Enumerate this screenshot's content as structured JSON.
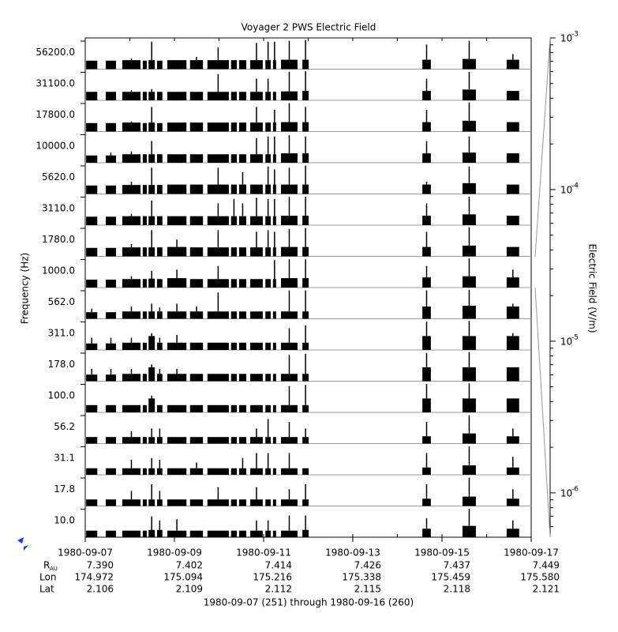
{
  "chart_data": {
    "type": "strip-stack",
    "title": "Voyager 2 PWS Electric Field",
    "y_label": "Frequency (Hz)",
    "y2_label": "Electric Field (V/m)",
    "footer": "1980-09-07 (251) through 1980-09-16 (260)",
    "color": "#000000",
    "log_scale": true,
    "xlim": [
      251,
      261
    ],
    "xticks": [
      {
        "value": 251,
        "label": "1980-09-07"
      },
      {
        "value": 253,
        "label": "1980-09-09"
      },
      {
        "value": 255,
        "label": "1980-09-11"
      },
      {
        "value": 257,
        "label": "1980-09-13"
      },
      {
        "value": 259,
        "label": "1980-09-15"
      },
      {
        "value": 261,
        "label": "1980-09-17"
      }
    ],
    "ylim": [
      5.1e-07,
      0.001
    ],
    "yticks": [
      {
        "value": 0.001,
        "label": "10",
        "exponent": "-3"
      },
      {
        "value": 0.0001,
        "label": "10",
        "exponent": "-4"
      },
      {
        "value": 1e-05,
        "label": "10",
        "exponent": "-5"
      },
      {
        "value": 1e-06,
        "label": "10",
        "exponent": "-6"
      }
    ],
    "segments": [
      [
        251.02,
        251.27
      ],
      [
        251.46,
        251.69
      ],
      [
        251.83,
        252.24
      ],
      [
        252.29,
        252.38
      ],
      [
        252.42,
        252.56
      ],
      [
        252.61,
        252.73
      ],
      [
        252.84,
        253.27
      ],
      [
        253.35,
        253.64
      ],
      [
        253.74,
        254.22
      ],
      [
        254.27,
        254.4
      ],
      [
        254.45,
        254.61
      ],
      [
        254.7,
        254.98
      ],
      [
        255.04,
        255.16
      ],
      [
        255.21,
        255.28
      ],
      [
        255.39,
        255.76
      ],
      [
        255.87,
        256.01
      ],
      [
        258.56,
        258.75
      ],
      [
        259.46,
        259.76
      ],
      [
        260.45,
        260.73
      ]
    ],
    "channels": [
      {
        "name": "56200.0",
        "values": [
          4e-06,
          4e-06,
          4.5e-06,
          4e-06,
          4.5e-06,
          4e-06,
          4.5e-06,
          4.5e-06,
          4.5e-06,
          4.5e-06,
          4.5e-06,
          4.5e-06,
          4.5e-06,
          4.5e-06,
          5e-06,
          5e-06,
          5e-06,
          6e-06,
          5e-06
        ],
        "peaks": [
          null,
          null,
          7e-06,
          null,
          0.0004,
          null,
          null,
          1e-05,
          0.0001,
          null,
          null,
          0.0003,
          0.0004,
          0.0004,
          0.0005,
          0.0006,
          0.0002,
          0.0005,
          2e-05
        ]
      },
      {
        "name": "31100.0",
        "values": [
          4e-06,
          4e-06,
          4e-06,
          4e-06,
          4e-06,
          4e-06,
          4e-06,
          4e-06,
          4e-06,
          4e-06,
          4e-06,
          4e-06,
          4e-06,
          4e-06,
          4.5e-06,
          5e-06,
          5e-06,
          7e-06,
          5e-06
        ],
        "peaks": [
          null,
          null,
          6e-06,
          null,
          8e-06,
          null,
          null,
          null,
          0.0003,
          null,
          null,
          0.0001,
          0.0001,
          null,
          0.0005,
          0.0006,
          0.0001,
          0.0005,
          null
        ]
      },
      {
        "name": "17800.0",
        "values": [
          4e-06,
          4e-06,
          4.5e-06,
          4e-06,
          4.5e-06,
          4e-06,
          4.5e-06,
          4.5e-06,
          4.5e-06,
          4.5e-06,
          4.5e-06,
          4.5e-06,
          4.5e-06,
          4.5e-06,
          5e-06,
          5e-06,
          5e-06,
          7e-06,
          5e-06
        ],
        "peaks": [
          null,
          null,
          6e-06,
          null,
          0.0002,
          null,
          null,
          null,
          null,
          null,
          null,
          0.0002,
          null,
          0.0001,
          0.0005,
          0.0002,
          0.0001,
          0.0006,
          null
        ]
      },
      {
        "name": "10000.0",
        "values": [
          3e-06,
          3e-06,
          4e-06,
          4e-06,
          4e-06,
          4e-06,
          4e-06,
          4e-06,
          4e-06,
          4e-06,
          4e-06,
          4e-06,
          4e-06,
          4e-06,
          5e-06,
          5e-06,
          5e-06,
          6e-06,
          5e-06
        ],
        "peaks": [
          null,
          6e-06,
          8e-06,
          null,
          0.0001,
          null,
          null,
          null,
          null,
          null,
          null,
          0.0002,
          0.0003,
          0.0003,
          0.0004,
          0.0003,
          0.0001,
          0.0003,
          null
        ]
      },
      {
        "name": "5620.0",
        "values": [
          4e-06,
          4e-06,
          4.5e-06,
          4.5e-06,
          4.5e-06,
          4.5e-06,
          5e-06,
          5e-06,
          5e-06,
          5e-06,
          5e-06,
          5e-06,
          5e-06,
          5e-06,
          5e-06,
          5e-06,
          5e-06,
          7e-06,
          5e-06
        ],
        "peaks": [
          null,
          null,
          1e-05,
          null,
          0.0003,
          null,
          null,
          null,
          0.0003,
          null,
          0.0001,
          null,
          0.0004,
          0.0002,
          0.0003,
          0.0005,
          1e-05,
          0.0004,
          null
        ]
      },
      {
        "name": "3110.0",
        "values": [
          4e-06,
          4e-06,
          4.5e-06,
          4.5e-06,
          4.5e-06,
          4.5e-06,
          4.5e-06,
          4.5e-06,
          4.5e-06,
          4.5e-06,
          4.5e-06,
          4.5e-06,
          4.5e-06,
          4.5e-06,
          5e-06,
          5e-06,
          5e-06,
          7e-06,
          5e-06
        ],
        "peaks": [
          null,
          null,
          8e-06,
          null,
          0.0002,
          null,
          null,
          null,
          0.0001,
          0.0003,
          0.0001,
          0.0004,
          0.0003,
          0.0003,
          0.0005,
          0.0005,
          0.0001,
          0.0005,
          null
        ]
      },
      {
        "name": "1780.0",
        "values": [
          4e-06,
          4e-06,
          4.5e-06,
          4.5e-06,
          4.5e-06,
          4.5e-06,
          5e-06,
          4.5e-06,
          4.5e-06,
          4.5e-06,
          4.5e-06,
          4.5e-06,
          4.5e-06,
          4.5e-06,
          5e-06,
          5e-06,
          5e-06,
          7e-06,
          5e-06
        ],
        "peaks": [
          null,
          null,
          1e-05,
          null,
          0.0003,
          null,
          3e-05,
          null,
          0.0003,
          null,
          null,
          0.0002,
          0.0003,
          0.0002,
          0.0004,
          0.0005,
          0.0002,
          0.0006,
          null
        ]
      },
      {
        "name": "1000.0",
        "values": [
          3.5e-06,
          3.5e-06,
          4e-06,
          4e-06,
          4.5e-06,
          4e-06,
          5e-06,
          4e-06,
          4e-06,
          4e-06,
          4e-06,
          4e-06,
          4e-06,
          4e-06,
          5e-06,
          5e-06,
          6e-06,
          8e-06,
          6e-06
        ],
        "peaks": [
          null,
          null,
          8e-06,
          null,
          3e-05,
          null,
          4e-05,
          null,
          0.0001,
          null,
          null,
          null,
          null,
          0.0004,
          0.0005,
          0.0005,
          0.0001,
          0.0006,
          4e-05
        ]
      },
      {
        "name": "562.0",
        "values": [
          2.5e-06,
          2.5e-06,
          3e-06,
          3e-06,
          3e-06,
          3e-06,
          3e-06,
          3e-06,
          3e-06,
          3e-06,
          3e-06,
          3e-06,
          3e-06,
          3e-06,
          3e-06,
          3e-06,
          1e-05,
          1.2e-05,
          1e-05
        ],
        "peaks": [
          6e-06,
          null,
          1e-05,
          null,
          2e-05,
          8e-06,
          2e-05,
          1e-05,
          0.0003,
          null,
          null,
          null,
          null,
          null,
          0.0005,
          0.0005,
          0.0005,
          0.0006,
          2e-05
        ]
      },
      {
        "name": "311.0",
        "values": [
          2.5e-06,
          2.5e-06,
          3e-06,
          3e-06,
          1.5e-05,
          3e-06,
          3e-06,
          3e-06,
          3e-06,
          3e-06,
          3e-06,
          3e-06,
          3e-06,
          3e-06,
          3e-06,
          3e-06,
          1.5e-05,
          1.5e-05,
          1.5e-05
        ],
        "peaks": [
          1e-05,
          1e-05,
          1e-05,
          null,
          3e-05,
          1e-05,
          2e-05,
          null,
          null,
          null,
          null,
          null,
          null,
          null,
          0.0001,
          0.0002,
          0.0005,
          0.0006,
          3e-05
        ]
      },
      {
        "name": "178.0",
        "values": [
          2.5e-06,
          2.5e-06,
          3e-06,
          3e-06,
          1.5e-05,
          3e-06,
          3e-06,
          3e-06,
          3e-06,
          3e-06,
          3e-06,
          3e-06,
          3e-06,
          3e-06,
          3e-06,
          3e-06,
          1.5e-05,
          1.5e-05,
          1.5e-05
        ],
        "peaks": [
          1e-05,
          1e-05,
          1e-05,
          null,
          3e-05,
          1e-05,
          1e-05,
          null,
          null,
          null,
          null,
          null,
          null,
          null,
          0.0003,
          0.0004,
          0.0005,
          0.0006,
          null
        ]
      },
      {
        "name": "100.0",
        "values": [
          3e-06,
          3e-06,
          3e-06,
          3e-06,
          1.5e-05,
          3e-06,
          3e-06,
          3e-06,
          3e-06,
          3e-06,
          3e-06,
          3e-06,
          3e-06,
          3e-06,
          3e-06,
          3e-06,
          1.5e-05,
          1.5e-05,
          1.5e-05
        ],
        "peaks": [
          null,
          null,
          null,
          null,
          3e-05,
          null,
          null,
          null,
          null,
          null,
          null,
          null,
          null,
          null,
          0.0003,
          0.0004,
          0.0005,
          0.0006,
          null
        ]
      },
      {
        "name": "56.2",
        "values": [
          2.5e-06,
          2.5e-06,
          2.5e-06,
          2.5e-06,
          2.5e-06,
          2.5e-06,
          2.5e-06,
          2.5e-06,
          2.5e-06,
          2.5e-06,
          2.5e-06,
          2.5e-06,
          2.5e-06,
          2.5e-06,
          2.5e-06,
          2.5e-06,
          3e-06,
          6e-06,
          3e-06
        ],
        "peaks": [
          null,
          null,
          1e-05,
          null,
          2e-05,
          2e-05,
          null,
          null,
          null,
          null,
          null,
          2e-05,
          0.0002,
          null,
          0.0001,
          2e-05,
          0.0001,
          0.0005,
          2e-05
        ]
      },
      {
        "name": "31.1",
        "values": [
          2.5e-06,
          2.5e-06,
          2.5e-06,
          2.5e-06,
          2.5e-06,
          2.5e-06,
          2.5e-06,
          2.5e-06,
          2.5e-06,
          2.5e-06,
          2.5e-06,
          2.5e-06,
          2.5e-06,
          2.5e-06,
          2.5e-06,
          2.5e-06,
          3e-06,
          5e-06,
          3e-06
        ],
        "peaks": [
          null,
          null,
          2e-05,
          null,
          3e-05,
          2e-05,
          null,
          1e-05,
          null,
          null,
          3e-05,
          0.0001,
          0.0001,
          null,
          0.0001,
          null,
          0.0001,
          0.0005,
          4e-05
        ]
      },
      {
        "name": "17.8",
        "values": [
          2.5e-06,
          2.5e-06,
          2.5e-06,
          2.5e-06,
          2.5e-06,
          2.5e-06,
          2.5e-06,
          2.5e-06,
          2.5e-06,
          2.5e-06,
          2.5e-06,
          2.5e-06,
          2.5e-06,
          2.5e-06,
          2.5e-06,
          2.5e-06,
          3e-06,
          5e-06,
          3e-06
        ],
        "peaks": [
          null,
          null,
          2e-05,
          null,
          0.0001,
          2e-05,
          null,
          null,
          5e-05,
          null,
          null,
          5e-05,
          null,
          null,
          3e-05,
          0.0001,
          0.0001,
          0.0005,
          3e-05
        ]
      },
      {
        "name": "10.0",
        "values": [
          2.5e-06,
          2.5e-06,
          2.5e-06,
          2.5e-06,
          3e-06,
          3e-06,
          2.5e-06,
          2.5e-06,
          2.5e-06,
          2.5e-06,
          2.5e-06,
          2.5e-06,
          2.5e-06,
          2.5e-06,
          2.5e-06,
          3e-06,
          4e-06,
          8e-06,
          4e-06
        ],
        "peaks": [
          null,
          null,
          null,
          null,
          8e-05,
          3e-05,
          4e-05,
          null,
          null,
          null,
          null,
          3e-05,
          3e-05,
          null,
          0.0001,
          0.0001,
          5e-05,
          0.0005,
          3e-05
        ]
      }
    ],
    "ephemeris": [
      {
        "label": "R",
        "sub": "AU",
        "values": [
          "7.390",
          "7.402",
          "7.414",
          "7.426",
          "7.437",
          "7.449"
        ]
      },
      {
        "label": "Lon",
        "values": [
          "174.972",
          "175.094",
          "175.216",
          "175.338",
          "175.459",
          "175.580"
        ]
      },
      {
        "label": "Lat",
        "values": [
          "2.106",
          "2.109",
          "2.112",
          "2.115",
          "2.118",
          "2.121"
        ]
      }
    ]
  }
}
